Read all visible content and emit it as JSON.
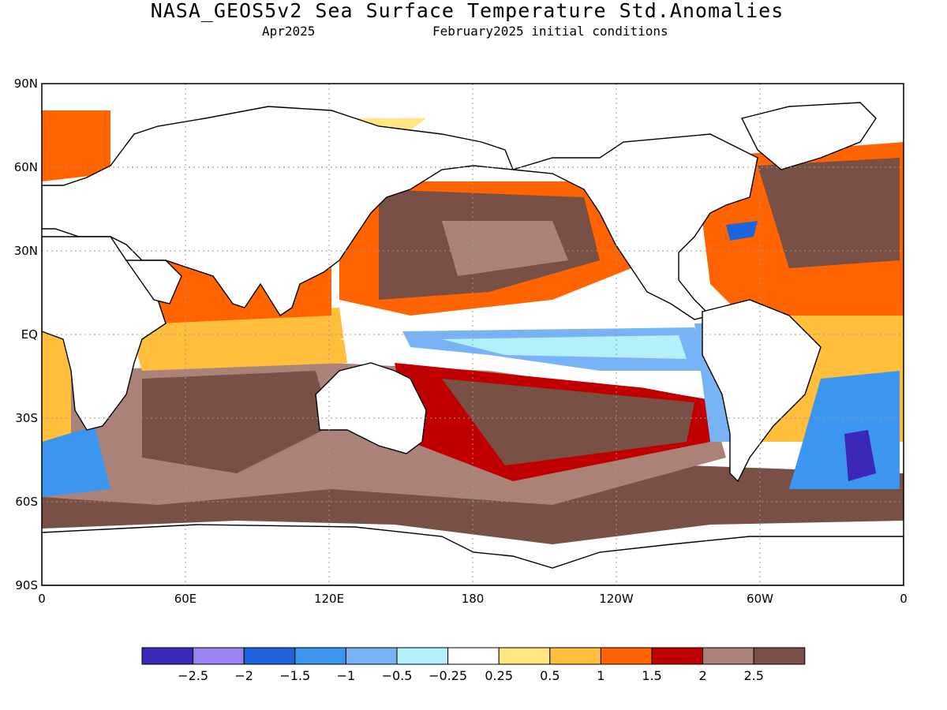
{
  "header": {
    "title": "NASA_GEOS5v2 Sea Surface Temperature Std.Anomalies",
    "valid_month": "Apr2025",
    "init_conditions": "February2025 initial conditions"
  },
  "map": {
    "lat_ticks": [
      "90N",
      "60N",
      "30N",
      "EQ",
      "30S",
      "60S",
      "90S"
    ],
    "lon_ticks": [
      "0",
      "60E",
      "120E",
      "180",
      "120W",
      "60W",
      "0"
    ],
    "gridlines": true,
    "land_color": "#ffffff"
  },
  "colorbar": {
    "colors": [
      "#3a28b8",
      "#9a82f2",
      "#1e64dc",
      "#3c96f0",
      "#78b4f5",
      "#b4f0fa",
      "#ffffff",
      "#ffe682",
      "#ffbe3c",
      "#ff6400",
      "#c00000",
      "#aa8278",
      "#785046"
    ],
    "labels": [
      "−2.5",
      "−2",
      "−1.5",
      "−1",
      "−0.5",
      "−0.25",
      "0.25",
      "0.5",
      "1",
      "1.5",
      "2",
      "2.5"
    ]
  }
}
